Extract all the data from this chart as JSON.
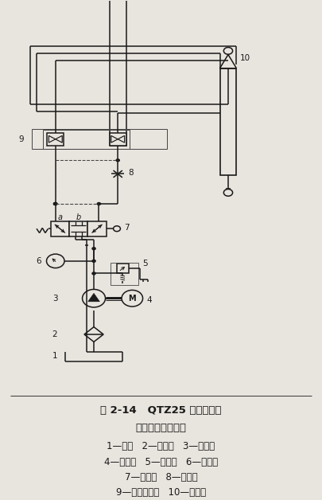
{
  "title_line1": "图 2-14   QTZ25 型塔式起重",
  "title_line2": "机顶升液压原理图",
  "legend_line1": "1—油箱   2—过滤器   3—齿轮泵",
  "legend_line2": "4—电动机   5—溢流阀   6—压力表",
  "legend_line3": "7—换向阀   8—节流阀",
  "legend_line4": "9—双向液压锁   10—液压缸",
  "bg_color": "#e8e4de",
  "lc": "#1a1a1a",
  "dc": "#444444"
}
